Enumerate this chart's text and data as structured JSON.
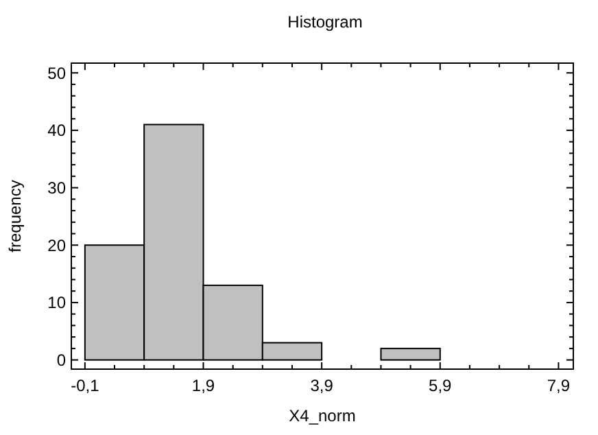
{
  "chart_data": {
    "type": "histogram",
    "title": "Histogram",
    "xlabel": "X4_norm",
    "ylabel": "frequency",
    "bins": [
      -0.1,
      0.9,
      1.9,
      2.9,
      3.9,
      4.9,
      5.9,
      6.9,
      7.9
    ],
    "values": [
      20,
      41,
      13,
      3,
      0,
      2,
      0,
      0
    ],
    "color": "#c0c0c0",
    "xlim": [
      -0.33,
      8.15
    ],
    "ylim": [
      -1.6,
      51.7
    ],
    "xticks": [
      {
        "value": -0.1,
        "label": "-0,1"
      },
      {
        "value": 0.4,
        "label": null
      },
      {
        "value": 0.9,
        "label": null
      },
      {
        "value": 1.4,
        "label": null
      },
      {
        "value": 1.9,
        "label": "1,9"
      },
      {
        "value": 2.4,
        "label": null
      },
      {
        "value": 2.9,
        "label": null
      },
      {
        "value": 3.4,
        "label": null
      },
      {
        "value": 3.9,
        "label": "3,9"
      },
      {
        "value": 4.4,
        "label": null
      },
      {
        "value": 4.9,
        "label": null
      },
      {
        "value": 5.4,
        "label": null
      },
      {
        "value": 5.9,
        "label": "5,9"
      },
      {
        "value": 6.4,
        "label": null
      },
      {
        "value": 6.9,
        "label": null
      },
      {
        "value": 7.4,
        "label": null
      },
      {
        "value": 7.9,
        "label": "7,9"
      }
    ],
    "yticks": [
      0,
      {
        "value": 2,
        "label": null
      },
      {
        "value": 4,
        "label": null
      },
      {
        "value": 6,
        "label": null
      },
      {
        "value": 8,
        "label": null
      },
      10,
      {
        "value": 12,
        "label": null
      },
      {
        "value": 14,
        "label": null
      },
      {
        "value": 16,
        "label": null
      },
      {
        "value": 18,
        "label": null
      },
      20,
      {
        "value": 22,
        "label": null
      },
      {
        "value": 24,
        "label": null
      },
      {
        "value": 26,
        "label": null
      },
      {
        "value": 28,
        "label": null
      },
      30,
      {
        "value": 32,
        "label": null
      },
      {
        "value": 34,
        "label": null
      },
      {
        "value": 36,
        "label": null
      },
      {
        "value": 38,
        "label": null
      },
      40,
      {
        "value": 42,
        "label": null
      },
      {
        "value": 44,
        "label": null
      },
      {
        "value": 46,
        "label": null
      },
      {
        "value": 48,
        "label": null
      },
      50
    ],
    "grid": false
  }
}
